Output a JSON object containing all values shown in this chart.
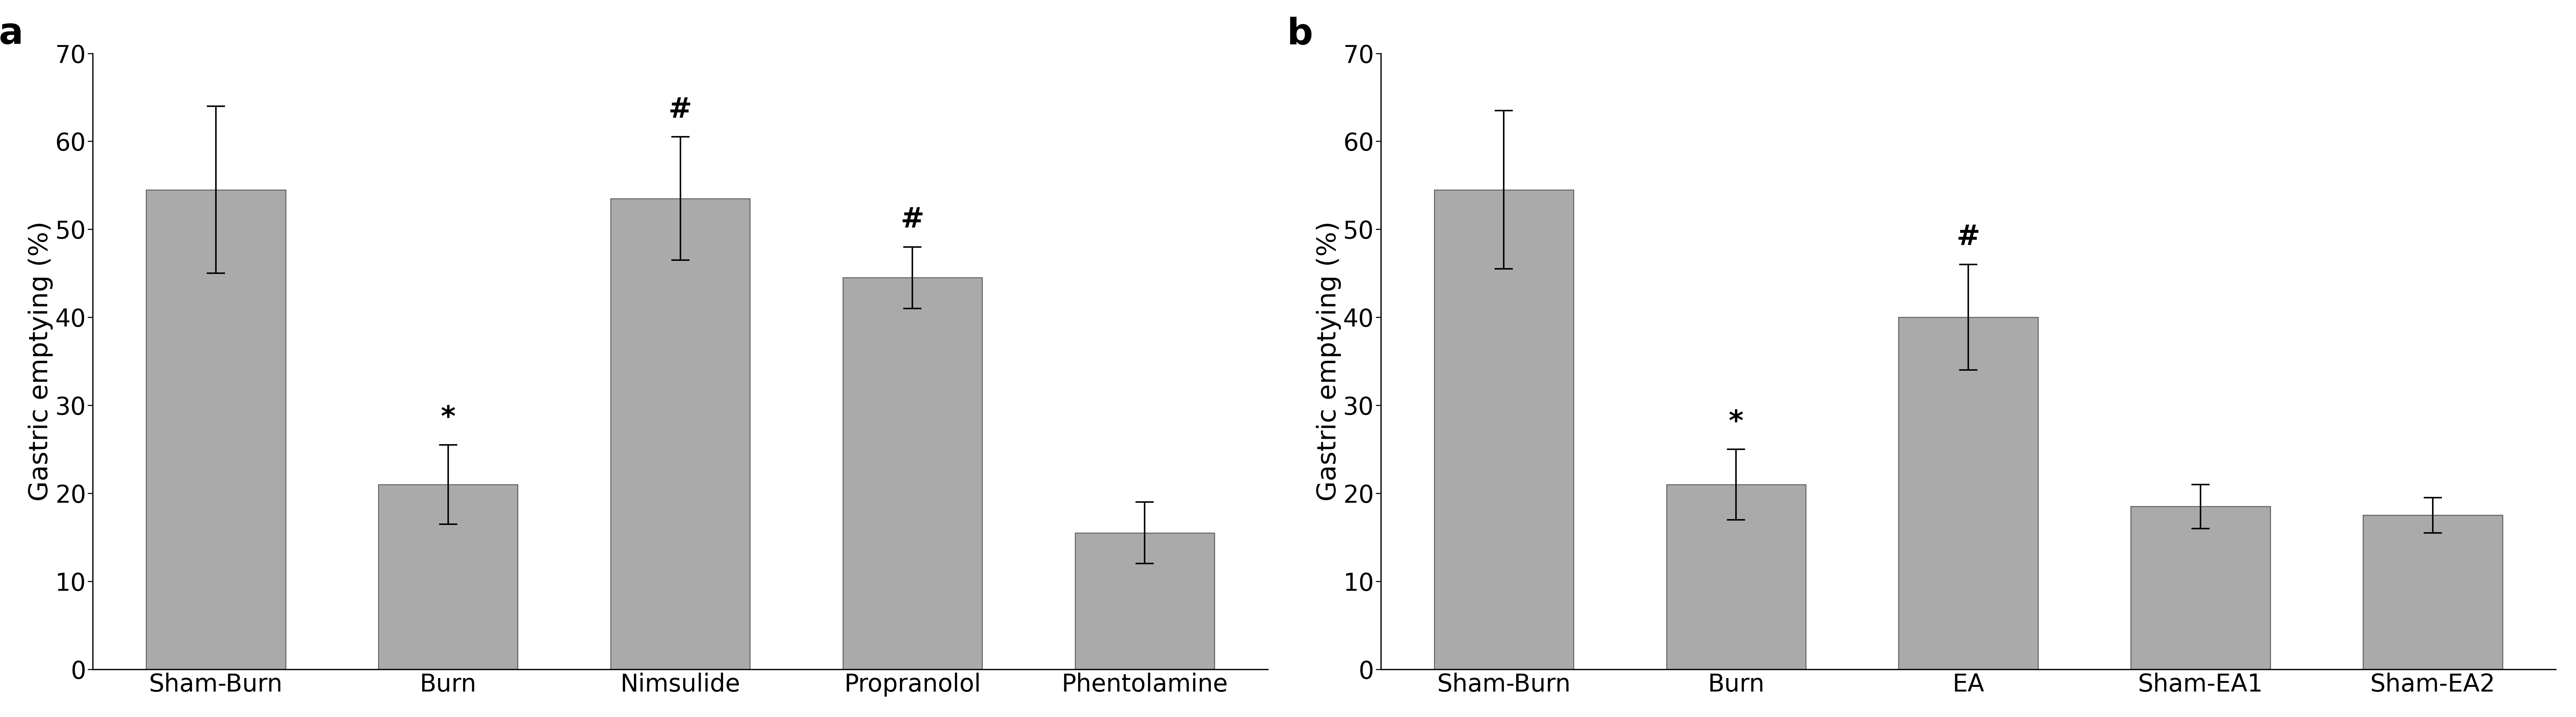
{
  "panel_a": {
    "categories": [
      "Sham-Burn",
      "Burn",
      "Nimsulide",
      "Propranolol",
      "Phentolamine"
    ],
    "values": [
      54.5,
      21.0,
      53.5,
      44.5,
      15.5
    ],
    "errors": [
      9.5,
      4.5,
      7.0,
      3.5,
      3.5
    ],
    "annotations": [
      "",
      "*",
      "#",
      "#",
      ""
    ],
    "ylabel": "Gastric emptying (%)",
    "ylim": [
      0,
      70
    ],
    "yticks": [
      0,
      10,
      20,
      30,
      40,
      50,
      60,
      70
    ],
    "panel_label": "a"
  },
  "panel_b": {
    "categories": [
      "Sham-Burn",
      "Burn",
      "EA",
      "Sham-EA1",
      "Sham-EA2"
    ],
    "values": [
      54.5,
      21.0,
      40.0,
      18.5,
      17.5
    ],
    "errors": [
      9.0,
      4.0,
      6.0,
      2.5,
      2.0
    ],
    "annotations": [
      "",
      "*",
      "#",
      "",
      ""
    ],
    "ylabel": "Gastric emptying (%)",
    "ylim": [
      0,
      70
    ],
    "yticks": [
      0,
      10,
      20,
      30,
      40,
      50,
      60,
      70
    ],
    "panel_label": "b"
  },
  "bar_color": "#aaaaaa",
  "bar_edgecolor": "#666666",
  "error_color": "black",
  "annotation_fontsize": 56,
  "label_fontsize": 52,
  "tick_fontsize": 48,
  "panel_label_fontsize": 72,
  "bar_width": 0.6,
  "background_color": "white",
  "capsize": 18,
  "elinewidth": 3.0,
  "capthick": 3.0,
  "spine_linewidth": 2.5,
  "fig_width": 70.87,
  "fig_height": 19.71,
  "dpi": 100
}
